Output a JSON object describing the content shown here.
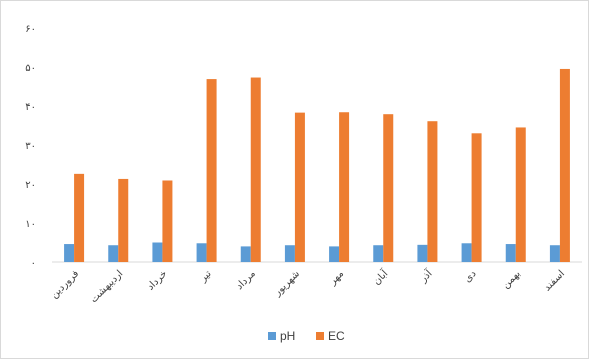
{
  "chart_data": {
    "type": "bar",
    "categories": [
      "فروردین",
      "اردیبهشت",
      "خرداد",
      "تیر",
      "مرداد",
      "شهریور",
      "مهر",
      "آبان",
      "آذر",
      "دی",
      "بهمن",
      "اسفند"
    ],
    "series": [
      {
        "name": "pH",
        "color": "#5B9BD5",
        "values": [
          4.6,
          4.3,
          5.0,
          4.8,
          4.0,
          4.3,
          4.0,
          4.3,
          4.4,
          4.8,
          4.6,
          4.3
        ]
      },
      {
        "name": "EC",
        "color": "#ED7D31",
        "values": [
          22.6,
          21.3,
          20.9,
          46.9,
          47.3,
          38.3,
          38.4,
          37.9,
          36.1,
          33.0,
          34.5,
          49.5
        ]
      }
    ],
    "y_ticks": [
      "۰",
      "۱۰",
      "۲۰",
      "۳۰",
      "۴۰",
      "۵۰",
      "۶۰"
    ],
    "ylim": [
      0,
      60
    ],
    "grid": false,
    "legend_position": "bottom"
  }
}
